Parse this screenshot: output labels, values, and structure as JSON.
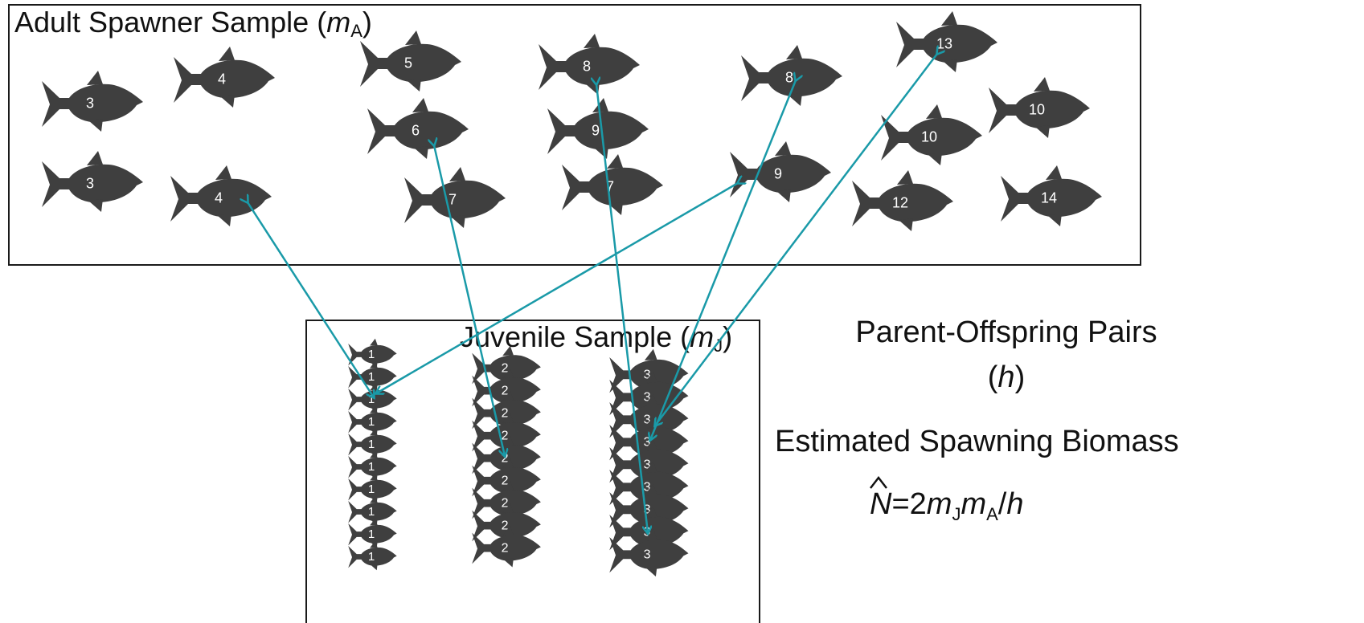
{
  "adult_box": {
    "title": "Adult Spawner Sample (",
    "title_var": "m",
    "title_sub": "A",
    "title_close": ")"
  },
  "juvenile_box": {
    "title": "Juvenile Sample (",
    "title_var": "m",
    "title_sub": "J",
    "title_close": ")"
  },
  "pairs_label": {
    "line1": "Parent-Offspring Pairs",
    "open": "(",
    "var": "h",
    "close": ")"
  },
  "biomass_label": "Estimated Spawning Biomass",
  "formula": {
    "hat_var": "N",
    "eq": "=2",
    "m1": "m",
    "sub1": "J",
    "m2": "m",
    "sub2": "A",
    "tail": "/",
    "h": "h"
  },
  "colors": {
    "fish": "#3f3f3f",
    "link": "#1a9aa8",
    "box_border": "#1a1a1a"
  },
  "adult_fish_ages": [
    "3",
    "4",
    "3",
    "4",
    "5",
    "6",
    "7",
    "8",
    "9",
    "7",
    "8",
    "9",
    "13",
    "10",
    "10",
    "12",
    "14"
  ],
  "juvenile_columns": [
    {
      "age": "1",
      "count": 10
    },
    {
      "age": "2",
      "count": 9
    },
    {
      "age": "3",
      "count": 9
    }
  ]
}
